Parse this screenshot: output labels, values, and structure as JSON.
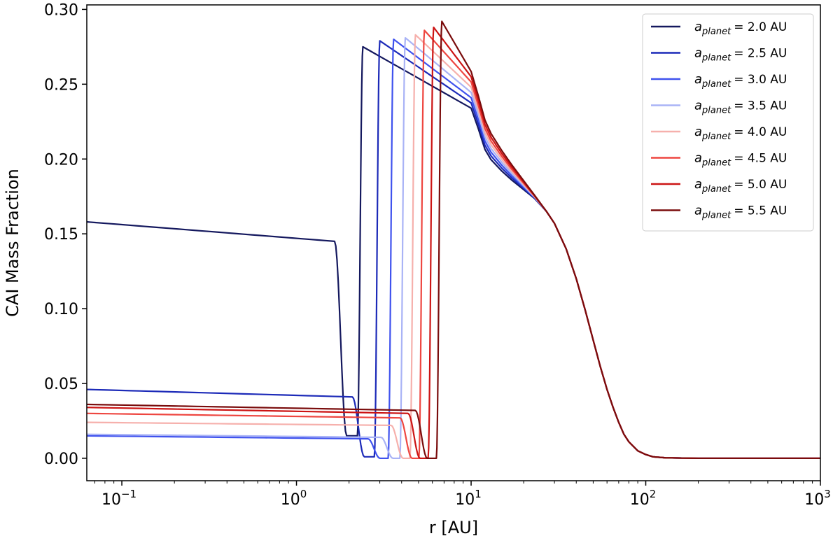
{
  "chart_data": {
    "type": "line",
    "xlabel": "r [AU]",
    "ylabel": "CAI Mass Fraction",
    "xscale": "log",
    "xlim": [
      0.063,
      1000
    ],
    "ylim": [
      -0.015,
      0.303
    ],
    "x_ticks": [
      {
        "value": 0.1,
        "base": "10",
        "exp": "−1"
      },
      {
        "value": 1,
        "base": "10",
        "exp": "0"
      },
      {
        "value": 10,
        "base": "10",
        "exp": "1"
      },
      {
        "value": 100,
        "base": "10",
        "exp": "2"
      },
      {
        "value": 1000,
        "base": "10",
        "exp": "3"
      }
    ],
    "y_ticks": [
      "0.00",
      "0.05",
      "0.10",
      "0.15",
      "0.20",
      "0.25",
      "0.30"
    ],
    "grid": false,
    "legend_position": "top-right",
    "series": [
      {
        "name_sub": "planet",
        "name_value": "= 2.0 AU",
        "color": "#14185e",
        "low": 0.158,
        "lowEnd": 0.145,
        "dip": 1.9,
        "dipMin": 0.015,
        "jump": 2.4,
        "peak": 0.275
      },
      {
        "name_sub": "planet",
        "name_value": "= 2.5 AU",
        "color": "#1c2ab8",
        "low": 0.046,
        "lowEnd": 0.041,
        "dip": 2.4,
        "dipMin": 0.001,
        "jump": 3.0,
        "peak": 0.279
      },
      {
        "name_sub": "planet",
        "name_value": "= 3.0 AU",
        "color": "#3f52ee",
        "low": 0.015,
        "lowEnd": 0.013,
        "dip": 2.95,
        "dipMin": 0.0,
        "jump": 3.6,
        "peak": 0.28
      },
      {
        "name_sub": "planet",
        "name_value": "= 3.5 AU",
        "color": "#a9b3f6",
        "low": 0.016,
        "lowEnd": 0.014,
        "dip": 3.5,
        "dipMin": 0.0,
        "jump": 4.2,
        "peak": 0.281
      },
      {
        "name_sub": "planet",
        "name_value": "= 4.0 AU",
        "color": "#f6b0ac",
        "low": 0.024,
        "lowEnd": 0.022,
        "dip": 4.0,
        "dipMin": 0.0,
        "jump": 4.8,
        "peak": 0.283
      },
      {
        "name_sub": "planet",
        "name_value": "= 4.5 AU",
        "color": "#ee4640",
        "low": 0.03,
        "lowEnd": 0.027,
        "dip": 4.5,
        "dipMin": 0.0,
        "jump": 5.4,
        "peak": 0.286
      },
      {
        "name_sub": "planet",
        "name_value": "= 5.0 AU",
        "color": "#cc1414",
        "low": 0.034,
        "lowEnd": 0.03,
        "dip": 5.0,
        "dipMin": 0.0,
        "jump": 6.1,
        "peak": 0.288
      },
      {
        "name_sub": "planet",
        "name_value": "= 5.5 AU",
        "color": "#7a0c0c",
        "low": 0.036,
        "lowEnd": 0.032,
        "dip": 5.5,
        "dipMin": 0.0,
        "jump": 6.8,
        "peak": 0.292
      }
    ],
    "outer_curve": [
      [
        10,
        0.236
      ],
      [
        11,
        0.222
      ],
      [
        12,
        0.208
      ],
      [
        13,
        0.201
      ],
      [
        15,
        0.193
      ],
      [
        17,
        0.187
      ],
      [
        20,
        0.18
      ],
      [
        23,
        0.174
      ],
      [
        27,
        0.165
      ],
      [
        30,
        0.157
      ],
      [
        35,
        0.14
      ],
      [
        40,
        0.12
      ],
      [
        45,
        0.099
      ],
      [
        50,
        0.079
      ],
      [
        55,
        0.061
      ],
      [
        60,
        0.046
      ],
      [
        65,
        0.034
      ],
      [
        70,
        0.024
      ],
      [
        75,
        0.016
      ],
      [
        80,
        0.011
      ],
      [
        90,
        0.005
      ],
      [
        100,
        0.0025
      ],
      [
        110,
        0.001
      ],
      [
        130,
        0.0003
      ],
      [
        200,
        0.0
      ],
      [
        1000,
        0.0
      ]
    ]
  }
}
